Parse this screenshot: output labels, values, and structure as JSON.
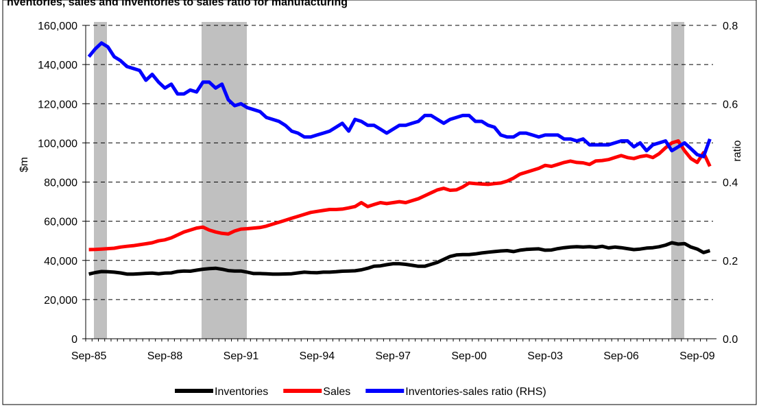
{
  "chart_data": {
    "type": "line",
    "title": "nventories, sales and inventories to sales ratio for manufacturing",
    "y_label": "$m",
    "y2_label": "ratio",
    "categories": [
      "Sep-85",
      null,
      null,
      null,
      null,
      null,
      null,
      null,
      null,
      null,
      null,
      null,
      "Sep-88",
      null,
      null,
      null,
      null,
      null,
      null,
      null,
      null,
      null,
      null,
      null,
      "Sep-91",
      null,
      null,
      null,
      null,
      null,
      null,
      null,
      null,
      null,
      null,
      null,
      "Sep-94",
      null,
      null,
      null,
      null,
      null,
      null,
      null,
      null,
      null,
      null,
      null,
      "Sep-97",
      null,
      null,
      null,
      null,
      null,
      null,
      null,
      null,
      null,
      null,
      null,
      "Sep-00",
      null,
      null,
      null,
      null,
      null,
      null,
      null,
      null,
      null,
      null,
      null,
      "Sep-03",
      null,
      null,
      null,
      null,
      null,
      null,
      null,
      null,
      null,
      null,
      null,
      "Sep-06",
      null,
      null,
      null,
      null,
      null,
      null,
      null,
      null,
      null,
      null,
      null,
      "Sep-09",
      null,
      null
    ],
    "series": [
      {
        "name": "Inventories",
        "color": "#000000",
        "values": [
          33000,
          33800,
          34300,
          34200,
          34000,
          33600,
          33000,
          33000,
          33200,
          33400,
          33500,
          33200,
          33500,
          33600,
          34300,
          34600,
          34500,
          35000,
          35500,
          35800,
          36000,
          35500,
          34800,
          34600,
          34600,
          34000,
          33300,
          33300,
          33200,
          33000,
          33000,
          33100,
          33200,
          33600,
          34000,
          33800,
          33700,
          34000,
          34000,
          34200,
          34500,
          34600,
          34700,
          35200,
          36000,
          37000,
          37200,
          37800,
          38300,
          38300,
          38000,
          37500,
          37000,
          37000,
          38000,
          39000,
          40500,
          42000,
          42800,
          43000,
          43000,
          43300,
          43800,
          44200,
          44500,
          44800,
          45000,
          44500,
          45200,
          45600,
          45800,
          45900,
          45200,
          45300,
          46000,
          46500,
          46800,
          47000,
          46800,
          47000,
          46700,
          47200,
          46400,
          46800,
          46500,
          46000,
          45500,
          45800,
          46300,
          46500,
          47000,
          47800,
          49000,
          48300,
          48600,
          46800,
          45800,
          44000,
          45000
        ]
      },
      {
        "name": "Sales",
        "color": "#ff0000",
        "values": [
          45500,
          45600,
          45800,
          46000,
          46200,
          46800,
          47200,
          47500,
          48000,
          48500,
          49000,
          50000,
          50500,
          51500,
          53000,
          54500,
          55500,
          56500,
          57000,
          55500,
          54500,
          53800,
          53500,
          55000,
          56000,
          56200,
          56500,
          56800,
          57500,
          58500,
          59500,
          60500,
          61500,
          62500,
          63500,
          64500,
          65000,
          65500,
          66000,
          66000,
          66200,
          66800,
          67500,
          69500,
          67500,
          68500,
          69500,
          69000,
          69500,
          70000,
          69500,
          70500,
          71500,
          73000,
          74500,
          76000,
          76800,
          75800,
          76000,
          77500,
          79500,
          79200,
          79000,
          78800,
          79200,
          79500,
          80500,
          82000,
          84000,
          85000,
          86000,
          87000,
          88500,
          88000,
          89000,
          90000,
          90700,
          90000,
          89800,
          89000,
          90800,
          91000,
          91500,
          92500,
          93500,
          92500,
          92000,
          93000,
          93500,
          92500,
          94500,
          97500,
          100000,
          101000,
          96000,
          92000,
          90000,
          95000,
          88000
        ]
      },
      {
        "name": "Inventories-sales ratio (RHS)",
        "color": "#0000ff",
        "axis": "y2",
        "values": [
          0.72,
          0.74,
          0.755,
          0.745,
          0.72,
          0.71,
          0.695,
          0.69,
          0.685,
          0.66,
          0.675,
          0.655,
          0.64,
          0.65,
          0.625,
          0.625,
          0.635,
          0.63,
          0.655,
          0.655,
          0.64,
          0.65,
          0.61,
          0.595,
          0.6,
          0.59,
          0.585,
          0.58,
          0.565,
          0.56,
          0.555,
          0.545,
          0.53,
          0.525,
          0.515,
          0.515,
          0.52,
          0.525,
          0.53,
          0.54,
          0.55,
          0.53,
          0.56,
          0.555,
          0.545,
          0.545,
          0.535,
          0.525,
          0.535,
          0.545,
          0.545,
          0.55,
          0.555,
          0.57,
          0.57,
          0.56,
          0.55,
          0.56,
          0.565,
          0.57,
          0.57,
          0.555,
          0.555,
          0.545,
          0.54,
          0.52,
          0.515,
          0.515,
          0.525,
          0.525,
          0.52,
          0.515,
          0.52,
          0.52,
          0.52,
          0.51,
          0.51,
          0.505,
          0.51,
          0.495,
          0.495,
          0.495,
          0.495,
          0.5,
          0.505,
          0.505,
          0.49,
          0.5,
          0.48,
          0.495,
          0.5,
          0.505,
          0.48,
          0.49,
          0.5,
          0.485,
          0.47,
          0.465,
          0.51
        ]
      }
    ],
    "ylim": [
      0,
      160000
    ],
    "yticks": [
      0,
      {
        "value": 20000,
        "label": "20,000"
      },
      {
        "value": 40000,
        "label": "40,000"
      },
      {
        "value": 60000,
        "label": "60,000"
      },
      {
        "value": 80000,
        "label": "80,000"
      },
      {
        "value": 100000,
        "label": "100,000"
      },
      {
        "value": 120000,
        "label": "120,000"
      },
      {
        "value": 140000,
        "label": "140,000"
      },
      {
        "value": 160000,
        "label": "160,000"
      }
    ],
    "y2lim": [
      0,
      0.8
    ],
    "y2ticks": [
      {
        "value": 0,
        "label": "0.0"
      },
      0.2,
      0.4,
      0.6,
      0.8
    ],
    "grid": true,
    "legend": "bottom"
  }
}
